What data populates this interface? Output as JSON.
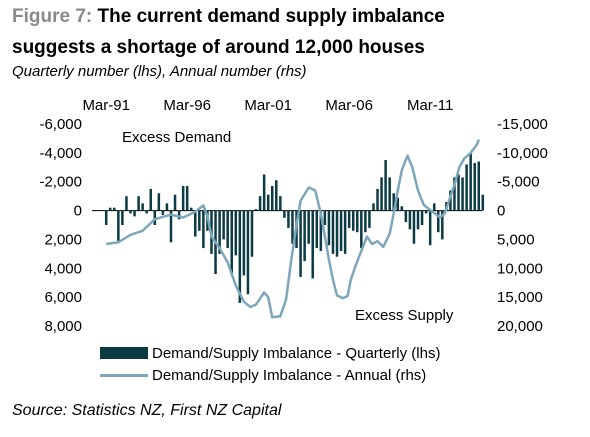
{
  "figure_label": "Figure 7:",
  "title_line1": "The current demand supply imbalance",
  "title_line2": "suggests a shortage of around 12,000 houses",
  "subtitle": "Quarterly number (lhs), Annual number (rhs)",
  "source": "Source: Statistics NZ, First NZ Capital",
  "chart_data": {
    "type": "bar+line",
    "top_axis_labels": [
      "Mar-91",
      "Mar-96",
      "Mar-01",
      "Mar-06",
      "Mar-11"
    ],
    "top_axis_years": [
      1991,
      1996,
      2001,
      2006,
      2011
    ],
    "x_range": [
      1990.0,
      2014.2
    ],
    "left_axis": {
      "ticks": [
        "-6,000",
        "-4,000",
        "-2,000",
        "0",
        "2,000",
        "4,000",
        "6,000",
        "8,000"
      ],
      "range": [
        -6000,
        8000
      ],
      "inverted": true
    },
    "right_axis": {
      "ticks": [
        "-15,000",
        "-10,000",
        "-5,000",
        "0",
        "5,000",
        "10,000",
        "15,000",
        "20,000"
      ],
      "range": [
        -15000,
        20000
      ],
      "inverted": true
    },
    "annotations": [
      "Excess Demand",
      "Excess Supply"
    ],
    "colors": {
      "bars": "#0d3b44",
      "line": "#7da6ba"
    },
    "series": [
      {
        "name": "Demand/Supply Imbalance - Quarterly (lhs)",
        "kind": "bar",
        "start_year": 1991.0,
        "step_years": 0.25,
        "values": [
          1000,
          -200,
          -200,
          2100,
          1000,
          -1000,
          200,
          400,
          -1000,
          -500,
          200,
          -1500,
          1000,
          -1200,
          300,
          -500,
          2200,
          -1100,
          600,
          -1700,
          -1700,
          -200,
          1800,
          1400,
          2600,
          1400,
          3000,
          4400,
          3000,
          2000,
          2600,
          4500,
          3100,
          6400,
          4500,
          5800,
          3200,
          -100,
          -1000,
          -2500,
          -1100,
          -1700,
          -2100,
          -1000,
          500,
          1200,
          2300,
          2600,
          4600,
          3500,
          2300,
          4700,
          2600,
          2800,
          1000,
          2400,
          3000,
          3200,
          2800,
          3000,
          1200,
          1400,
          1500,
          2600,
          1500,
          1200,
          -500,
          -1500,
          -2300,
          -3500,
          -2300,
          -1200,
          -900,
          -300,
          800,
          1300,
          2300,
          1300,
          1000,
          200,
          2400,
          -500,
          1500,
          2000,
          -600,
          -1400,
          -2300,
          -2500,
          -2300,
          -3200,
          -4000,
          -3300,
          -3400,
          -1100
        ]
      },
      {
        "name": "Demand/Supply Imbalance - Annual (rhs)",
        "kind": "line",
        "points": [
          [
            1991.0,
            5800
          ],
          [
            1991.75,
            5500
          ],
          [
            1992.5,
            4200
          ],
          [
            1993.25,
            3500
          ],
          [
            1994.0,
            1500
          ],
          [
            1995.0,
            700
          ],
          [
            1995.75,
            1200
          ],
          [
            1996.5,
            200
          ],
          [
            1997.0,
            -900
          ],
          [
            1997.25,
            1000
          ],
          [
            1997.5,
            4500
          ],
          [
            1998.0,
            6500
          ],
          [
            1998.5,
            9000
          ],
          [
            1999.0,
            13000
          ],
          [
            1999.5,
            15800
          ],
          [
            1999.9,
            16700
          ],
          [
            2000.25,
            16300
          ],
          [
            2000.75,
            14200
          ],
          [
            2001.0,
            15000
          ],
          [
            2001.25,
            18500
          ],
          [
            2001.75,
            18300
          ],
          [
            2002.1,
            15500
          ],
          [
            2002.4,
            9000
          ],
          [
            2002.75,
            2500
          ],
          [
            2003.0,
            -1700
          ],
          [
            2003.5,
            -4000
          ],
          [
            2003.9,
            -3500
          ],
          [
            2004.25,
            500
          ],
          [
            2004.5,
            4500
          ],
          [
            2004.75,
            8500
          ],
          [
            2005.0,
            12000
          ],
          [
            2005.25,
            14700
          ],
          [
            2005.6,
            15200
          ],
          [
            2005.9,
            14800
          ],
          [
            2006.1,
            12000
          ],
          [
            2006.4,
            9500
          ],
          [
            2006.75,
            7000
          ],
          [
            2007.1,
            4500
          ],
          [
            2007.4,
            5800
          ],
          [
            2007.75,
            5300
          ],
          [
            2008.1,
            6300
          ],
          [
            2008.5,
            4000
          ],
          [
            2008.75,
            500
          ],
          [
            2009.0,
            -3500
          ],
          [
            2009.25,
            -7000
          ],
          [
            2009.6,
            -9500
          ],
          [
            2009.9,
            -7500
          ],
          [
            2010.25,
            -3500
          ],
          [
            2010.6,
            -1000
          ],
          [
            2011.0,
            -100
          ],
          [
            2011.3,
            500
          ],
          [
            2011.6,
            1200
          ],
          [
            2011.9,
            500
          ],
          [
            2012.2,
            -2000
          ],
          [
            2012.5,
            -4500
          ],
          [
            2012.8,
            -7500
          ],
          [
            2013.1,
            -9000
          ],
          [
            2013.5,
            -10000
          ],
          [
            2013.9,
            -11500
          ],
          [
            2014.0,
            -12300
          ]
        ]
      }
    ],
    "legend": [
      "Demand/Supply Imbalance - Quarterly (lhs)",
      "Demand/Supply Imbalance - Annual (rhs)"
    ]
  }
}
